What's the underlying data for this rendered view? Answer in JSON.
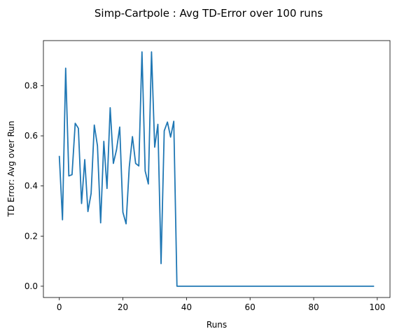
{
  "chart_data": {
    "type": "line",
    "title": "Simp-Cartpole : Avg TD-Error over 100 runs",
    "xlabel": "Runs",
    "ylabel": "TD Error: Avg over Run",
    "xlim": [
      -5,
      104
    ],
    "ylim": [
      -0.045,
      0.98
    ],
    "xticks": [
      0,
      20,
      40,
      60,
      80,
      100
    ],
    "yticks": [
      0.0,
      0.2,
      0.4,
      0.6,
      0.8
    ],
    "ytick_labels": [
      "0.0",
      "0.2",
      "0.4",
      "0.6",
      "0.8"
    ],
    "line_color": "#1f77b4",
    "series": [
      {
        "name": "TD Error",
        "x_start": 0,
        "x_step": 1,
        "values": [
          0.52,
          0.265,
          0.87,
          0.44,
          0.445,
          0.65,
          0.63,
          0.33,
          0.505,
          0.298,
          0.37,
          0.643,
          0.56,
          0.253,
          0.578,
          0.39,
          0.712,
          0.49,
          0.545,
          0.635,
          0.295,
          0.249,
          0.475,
          0.597,
          0.49,
          0.48,
          0.935,
          0.46,
          0.408,
          0.935,
          0.555,
          0.646,
          0.09,
          0.62,
          0.655,
          0.595,
          0.658,
          0.0,
          0.0,
          0.0,
          0.0,
          0.0,
          0.0,
          0.0,
          0.0,
          0.0,
          0.0,
          0.0,
          0.0,
          0.0,
          0.0,
          0.0,
          0.0,
          0.0,
          0.0,
          0.0,
          0.0,
          0.0,
          0.0,
          0.0,
          0.0,
          0.0,
          0.0,
          0.0,
          0.0,
          0.0,
          0.0,
          0.0,
          0.0,
          0.0,
          0.0,
          0.0,
          0.0,
          0.0,
          0.0,
          0.0,
          0.0,
          0.0,
          0.0,
          0.0,
          0.0,
          0.0,
          0.0,
          0.0,
          0.0,
          0.0,
          0.0,
          0.0,
          0.0,
          0.0,
          0.0,
          0.0,
          0.0,
          0.0,
          0.0,
          0.0,
          0.0,
          0.0,
          0.0,
          0.0
        ]
      }
    ]
  }
}
